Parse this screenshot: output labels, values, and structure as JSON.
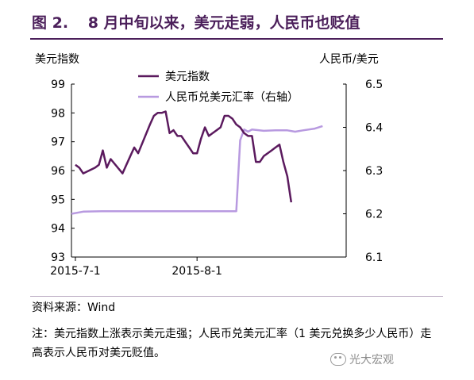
{
  "header": {
    "figure_number": "图 2.",
    "title": "8 月中旬以来，美元走弱，人民币也贬值"
  },
  "chart_data": {
    "type": "line",
    "left_axis_label": "美元指数",
    "right_axis_label": "人民币/美元",
    "left_ylim": [
      93,
      99
    ],
    "left_ticks": [
      "93",
      "94",
      "95",
      "96",
      "97",
      "98",
      "99"
    ],
    "right_ylim": [
      6.1,
      6.5
    ],
    "right_ticks": [
      "6.1",
      "6.2",
      "6.3",
      "6.4",
      "6.5"
    ],
    "x_tick_labels": [
      "2015-7-1",
      "2015-8-1"
    ],
    "x_domain": [
      "2015-06-30",
      "2015-09-08"
    ],
    "x_ticks": [
      "2015-07-01",
      "2015-08-01"
    ],
    "legend_position": "top-center",
    "series": [
      {
        "name": "美元指数",
        "axis": "left",
        "color": "#5b1a5e",
        "points": [
          [
            "2015-07-01",
            96.2
          ],
          [
            "2015-07-02",
            96.1
          ],
          [
            "2015-07-03",
            95.9
          ],
          [
            "2015-07-06",
            96.1
          ],
          [
            "2015-07-07",
            96.2
          ],
          [
            "2015-07-08",
            96.7
          ],
          [
            "2015-07-09",
            96.1
          ],
          [
            "2015-07-10",
            96.4
          ],
          [
            "2015-07-13",
            95.9
          ],
          [
            "2015-07-14",
            96.2
          ],
          [
            "2015-07-15",
            96.5
          ],
          [
            "2015-07-16",
            96.8
          ],
          [
            "2015-07-17",
            96.6
          ],
          [
            "2015-07-20",
            97.6
          ],
          [
            "2015-07-21",
            97.9
          ],
          [
            "2015-07-22",
            98.0
          ],
          [
            "2015-07-23",
            98.0
          ],
          [
            "2015-07-24",
            98.05
          ],
          [
            "2015-07-25",
            97.3
          ],
          [
            "2015-07-26",
            97.4
          ],
          [
            "2015-07-27",
            97.2
          ],
          [
            "2015-07-28",
            97.2
          ],
          [
            "2015-07-29",
            97.0
          ],
          [
            "2015-07-30",
            96.8
          ],
          [
            "2015-07-31",
            96.6
          ],
          [
            "2015-08-01",
            96.6
          ],
          [
            "2015-08-02",
            97.1
          ],
          [
            "2015-08-03",
            97.5
          ],
          [
            "2015-08-04",
            97.2
          ],
          [
            "2015-08-05",
            97.3
          ],
          [
            "2015-08-06",
            97.4
          ],
          [
            "2015-08-07",
            97.5
          ],
          [
            "2015-08-08",
            97.9
          ],
          [
            "2015-08-09",
            97.9
          ],
          [
            "2015-08-10",
            97.8
          ],
          [
            "2015-08-11",
            97.6
          ],
          [
            "2015-08-12",
            97.5
          ],
          [
            "2015-08-13",
            97.3
          ],
          [
            "2015-08-14",
            97.2
          ],
          [
            "2015-08-15",
            97.2
          ],
          [
            "2015-08-16",
            96.3
          ],
          [
            "2015-08-17",
            96.3
          ],
          [
            "2015-08-18",
            96.5
          ],
          [
            "2015-08-19",
            96.6
          ],
          [
            "2015-08-20",
            96.7
          ],
          [
            "2015-08-21",
            96.8
          ],
          [
            "2015-08-22",
            96.9
          ],
          [
            "2015-08-23",
            96.3
          ],
          [
            "2015-08-24",
            95.8
          ],
          [
            "2015-08-25",
            94.9
          ]
        ]
      },
      {
        "name": "人民币兑美元汇率（右轴）",
        "axis": "right",
        "color": "#b89ae0",
        "points": [
          [
            "2015-06-30",
            6.2
          ],
          [
            "2015-07-03",
            6.205
          ],
          [
            "2015-07-08",
            6.206
          ],
          [
            "2015-07-15",
            6.206
          ],
          [
            "2015-07-25",
            6.206
          ],
          [
            "2015-08-05",
            6.206
          ],
          [
            "2015-08-10",
            6.206
          ],
          [
            "2015-08-11",
            6.206
          ],
          [
            "2015-08-12",
            6.37
          ],
          [
            "2015-08-13",
            6.395
          ],
          [
            "2015-08-14",
            6.39
          ],
          [
            "2015-08-15",
            6.395
          ],
          [
            "2015-08-18",
            6.392
          ],
          [
            "2015-08-21",
            6.393
          ],
          [
            "2015-08-24",
            6.393
          ],
          [
            "2015-08-26",
            6.39
          ],
          [
            "2015-08-28",
            6.393
          ],
          [
            "2015-08-31",
            6.397
          ],
          [
            "2015-09-02",
            6.403
          ]
        ]
      }
    ]
  },
  "footer": {
    "source": "资料来源：Wind",
    "note": "注：美元指数上涨表示美元走强；人民币兑美元汇率（1 美元兑换多少人民币）走高表示人民币对美元贬值。",
    "watermark": "光大宏观",
    "watermark_icon": "wechat-icon"
  }
}
